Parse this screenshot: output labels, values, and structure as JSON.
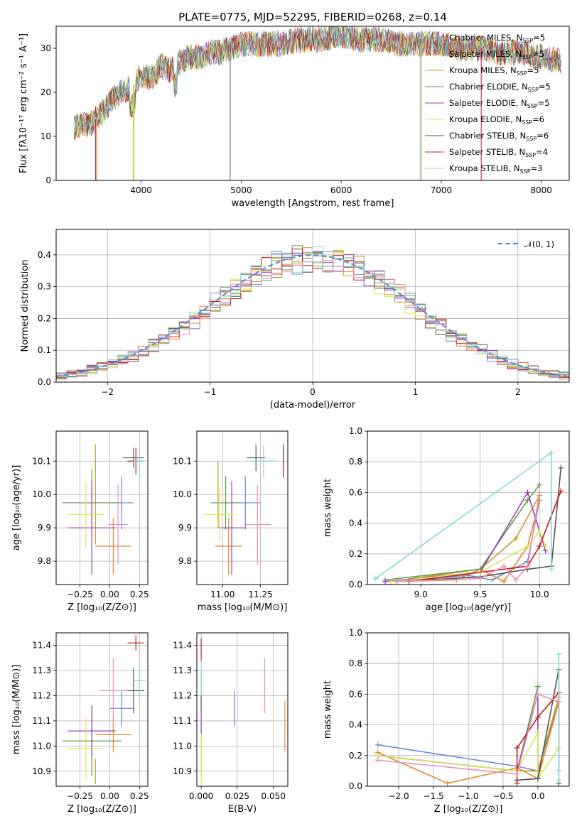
{
  "title": "PLATE=0775, MJD=52295, FIBERID=0268, z=0.14",
  "colors": {
    "cm": "#6a8bd8",
    "sm": "#e8842c",
    "km": "#c59a22",
    "ce": "#5e9a4c",
    "se": "#9b3fb8",
    "ke": "#d8e85a",
    "cs": "#555555",
    "ss": "#c01c1c",
    "ks": "#84d8dc",
    "pink": "#e890b8",
    "gauss": "#5b8fd8"
  },
  "legend": [
    {
      "label": "Chabrier MILES, N",
      "sub": "SSP",
      "tail": "=5",
      "color": "#6a8bd8"
    },
    {
      "label": "Salpeter MILES, N",
      "sub": "SSP",
      "tail": "=5",
      "color": "#e8842c"
    },
    {
      "label": "Kroupa MILES, N",
      "sub": "SSP",
      "tail": "=5",
      "color": "#c59a22"
    },
    {
      "label": "Chabrier ELODIE, N",
      "sub": "SSP",
      "tail": "=5",
      "color": "#5e9a4c"
    },
    {
      "label": "Salpeter ELODIE, N",
      "sub": "SSP",
      "tail": "=5",
      "color": "#9b3fb8"
    },
    {
      "label": "Kroupa ELODIE, N",
      "sub": "SSP",
      "tail": "=6",
      "color": "#d8e85a"
    },
    {
      "label": "Chabrier STELIB, N",
      "sub": "SSP",
      "tail": "=6",
      "color": "#555555"
    },
    {
      "label": "Salpeter STELIB, N",
      "sub": "SSP",
      "tail": "=4",
      "color": "#c01c1c"
    },
    {
      "label": "Kroupa STELIB, N",
      "sub": "SSP",
      "tail": "=3",
      "color": "#84d8dc"
    }
  ],
  "chart_data": [
    {
      "id": "spectrum",
      "type": "line",
      "xlabel": "wavelength [Angstrom, rest frame]",
      "ylabel": "Flux [fλ10⁻¹⁷ erg cm⁻² s⁻¹ A⁻¹]",
      "xlim": [
        3150,
        8280
      ],
      "ylim": [
        0,
        35
      ],
      "xticks": [
        4000,
        5000,
        6000,
        7000,
        8000
      ],
      "yticks": [
        0,
        10,
        20,
        30
      ],
      "series": [
        {
          "name": "data",
          "x": [
            3300,
            3400,
            3500,
            3600,
            3700,
            3800,
            3900,
            4000,
            4100,
            4200,
            4300,
            4400,
            4500,
            4600,
            4700,
            4800,
            4900,
            5000,
            5200,
            5400,
            5600,
            5800,
            6000,
            6200,
            6400,
            6600,
            6800,
            7000,
            7200,
            7400,
            7600,
            7800,
            8000,
            8200
          ],
          "y": [
            12,
            12.5,
            13,
            15,
            18,
            20,
            21,
            24,
            23,
            26,
            25,
            27,
            28,
            28,
            29,
            29,
            30,
            31,
            31,
            31,
            32,
            32,
            33,
            32,
            32,
            31,
            31,
            31,
            30,
            30,
            29,
            29,
            28,
            27
          ]
        }
      ]
    },
    {
      "id": "residuals",
      "type": "histogram",
      "xlabel": "(data-model)/error",
      "ylabel": "Normed distribution",
      "xlim": [
        -2.5,
        2.5
      ],
      "ylim": [
        0,
        0.48
      ],
      "xticks": [
        -2,
        -1,
        0,
        1,
        2
      ],
      "yticks": [
        0.0,
        0.1,
        0.2,
        0.3,
        0.4
      ],
      "legend_label": "𝒩(0, 1)"
    },
    {
      "id": "age-vs-Z",
      "type": "errorbar",
      "xlabel": "Z [log₁₀(Z/Z⊙)]",
      "ylabel": "age  [log₁₀(age/yr)]",
      "xlim": [
        -0.45,
        0.32
      ],
      "ylim": [
        9.73,
        10.19
      ],
      "xticks": [
        -0.25,
        0.0,
        0.25
      ],
      "yticks": [
        9.8,
        9.9,
        10.0,
        10.1
      ],
      "points": [
        {
          "x": 0.1,
          "y": 9.975,
          "xerr": 0.1,
          "yerr": 0.08,
          "c": "cm"
        },
        {
          "x": 0.03,
          "y": 9.845,
          "xerr": 0.15,
          "yerr": 0.085,
          "c": "sm"
        },
        {
          "x": -0.12,
          "y": 10.0,
          "xerr": 0.0,
          "yerr": 0.15,
          "c": "km"
        },
        {
          "x": -0.15,
          "y": 9.975,
          "xerr": 0.25,
          "yerr": 0.1,
          "c": "ce"
        },
        {
          "x": -0.15,
          "y": 9.9,
          "xerr": 0.2,
          "yerr": 0.14,
          "c": "se"
        },
        {
          "x": -0.2,
          "y": 9.94,
          "xerr": 0.15,
          "yerr": 0.1,
          "c": "ke"
        },
        {
          "x": 0.2,
          "y": 10.11,
          "xerr": 0.09,
          "yerr": 0.03,
          "c": "cs"
        },
        {
          "x": 0.22,
          "y": 10.1,
          "xerr": 0.07,
          "yerr": 0.04,
          "c": "ss"
        },
        {
          "x": 0.25,
          "y": 10.1,
          "xerr": 0.05,
          "yerr": 0.05,
          "c": "ks"
        },
        {
          "x": 0.07,
          "y": 9.91,
          "xerr": 0.08,
          "yerr": 0.12,
          "c": "pink"
        }
      ]
    },
    {
      "id": "age-vs-mass",
      "type": "errorbar",
      "xlabel": "mass [log₁₀(M/M⊙)]",
      "ylabel": "",
      "xlim": [
        10.83,
        11.43
      ],
      "ylim": [
        9.73,
        10.19
      ],
      "xticks": [
        11.0,
        11.25
      ],
      "yticks": [
        9.8,
        9.9,
        10.0,
        10.1
      ],
      "points": [
        {
          "x": 11.15,
          "y": 9.975,
          "xerr": 0.1,
          "yerr": 0.08,
          "c": "cm"
        },
        {
          "x": 11.04,
          "y": 9.845,
          "xerr": 0.09,
          "yerr": 0.085,
          "c": "sm"
        },
        {
          "x": 10.97,
          "y": 10.0,
          "xerr": 0.0,
          "yerr": 0.1,
          "c": "km"
        },
        {
          "x": 11.02,
          "y": 9.975,
          "xerr": 0.1,
          "yerr": 0.08,
          "c": "ce"
        },
        {
          "x": 11.06,
          "y": 9.9,
          "xerr": 0.09,
          "yerr": 0.14,
          "c": "se"
        },
        {
          "x": 10.98,
          "y": 9.94,
          "xerr": 0.1,
          "yerr": 0.08,
          "c": "ke"
        },
        {
          "x": 11.22,
          "y": 10.11,
          "xerr": 0.06,
          "yerr": 0.04,
          "c": "cs"
        },
        {
          "x": 11.4,
          "y": 10.1,
          "xerr": 0.0,
          "yerr": 0.05,
          "c": "ss"
        },
        {
          "x": 11.27,
          "y": 10.1,
          "xerr": 0.08,
          "yerr": 0.05,
          "c": "ks"
        },
        {
          "x": 11.23,
          "y": 9.91,
          "xerr": 0.09,
          "yerr": 0.12,
          "c": "pink"
        }
      ]
    },
    {
      "id": "weight-vs-age",
      "type": "line",
      "xlabel": "age  [log₁₀(age/yr)]",
      "ylabel": "mass weight",
      "xlim": [
        8.55,
        10.25
      ],
      "ylim": [
        0,
        1
      ],
      "xticks": [
        9.0,
        9.5,
        10.0
      ],
      "yticks": [
        0.0,
        0.2,
        0.4,
        0.6,
        0.8,
        1.0
      ],
      "series": [
        {
          "c": "cm",
          "x": [
            8.8,
            9.4,
            9.6,
            9.9,
            10.0
          ],
          "y": [
            0.02,
            0.06,
            0.03,
            0.15,
            0.55
          ]
        },
        {
          "c": "sm",
          "x": [
            8.8,
            9.3,
            9.5,
            9.7,
            9.9,
            10.0
          ],
          "y": [
            0.02,
            0.03,
            0.1,
            0.02,
            0.25,
            0.55
          ]
        },
        {
          "c": "km",
          "x": [
            8.75,
            9.5,
            9.8,
            10.0
          ],
          "y": [
            0.02,
            0.1,
            0.3,
            0.58
          ]
        },
        {
          "c": "ce",
          "x": [
            8.7,
            9.5,
            9.9,
            10.0
          ],
          "y": [
            0.03,
            0.1,
            0.55,
            0.65
          ]
        },
        {
          "c": "se",
          "x": [
            8.7,
            9.5,
            9.9,
            10.05
          ],
          "y": [
            0.02,
            0.08,
            0.6,
            0.22
          ]
        },
        {
          "c": "ke",
          "x": [
            8.75,
            9.0,
            9.5,
            9.9,
            10.0,
            10.05
          ],
          "y": [
            0.02,
            0.04,
            0.08,
            0.25,
            0.35,
            0.25
          ]
        },
        {
          "c": "cs",
          "x": [
            8.8,
            9.5,
            9.9,
            10.1,
            10.18
          ],
          "y": [
            0.02,
            0.05,
            0.1,
            0.12,
            0.76
          ]
        },
        {
          "c": "ss",
          "x": [
            8.9,
            9.9,
            10.0,
            10.18
          ],
          "y": [
            0.02,
            0.12,
            0.25,
            0.61
          ]
        },
        {
          "c": "ks",
          "x": [
            8.62,
            10.1,
            10.1
          ],
          "y": [
            0.04,
            0.86,
            0.1
          ]
        },
        {
          "c": "pink",
          "x": [
            8.8,
            9.5,
            9.7,
            9.8,
            9.9,
            10.0
          ],
          "y": [
            0.02,
            0.04,
            0.12,
            0.03,
            0.12,
            0.6
          ]
        }
      ]
    },
    {
      "id": "mass-vs-Z",
      "type": "errorbar",
      "xlabel": "Z [log₁₀(Z/Z⊙)]",
      "ylabel": "mass [log₁₀(M/M⊙)]",
      "xlim": [
        -0.45,
        0.32
      ],
      "ylim": [
        10.84,
        11.45
      ],
      "xticks": [
        -0.25,
        0.0,
        0.25
      ],
      "yticks": [
        10.9,
        11.0,
        11.1,
        11.2,
        11.3,
        11.4
      ],
      "points": [
        {
          "x": 0.1,
          "y": 11.15,
          "xerr": 0.1,
          "yerr": 0.07,
          "c": "cm"
        },
        {
          "x": 0.03,
          "y": 11.045,
          "xerr": 0.15,
          "yerr": 0.07,
          "c": "sm"
        },
        {
          "x": -0.12,
          "y": 10.9,
          "xerr": 0.0,
          "yerr": 0.05,
          "c": "km"
        },
        {
          "x": -0.15,
          "y": 11.02,
          "xerr": 0.25,
          "yerr": 0.14,
          "c": "ce"
        },
        {
          "x": -0.15,
          "y": 11.06,
          "xerr": 0.2,
          "yerr": 0.1,
          "c": "se"
        },
        {
          "x": -0.2,
          "y": 10.99,
          "xerr": 0.15,
          "yerr": 0.12,
          "c": "ke"
        },
        {
          "x": 0.2,
          "y": 11.22,
          "xerr": 0.09,
          "yerr": 0.09,
          "c": "cs"
        },
        {
          "x": 0.22,
          "y": 11.41,
          "xerr": 0.07,
          "yerr": 0.03,
          "c": "ss"
        },
        {
          "x": 0.25,
          "y": 11.26,
          "xerr": 0.05,
          "yerr": 0.06,
          "c": "ks"
        },
        {
          "x": 0.03,
          "y": 11.22,
          "xerr": 0.12,
          "yerr": 0.13,
          "c": "pink"
        }
      ]
    },
    {
      "id": "mass-vs-ebv",
      "type": "errorbar",
      "xlabel": "E(B-V)",
      "ylabel": "",
      "xlim": [
        -0.003,
        0.06
      ],
      "ylim": [
        10.84,
        11.45
      ],
      "xticks": [
        0.0,
        0.025,
        0.05
      ],
      "yticks": [
        10.9,
        11.0,
        11.1,
        11.2,
        11.3,
        11.4
      ],
      "points": [
        {
          "x": 0.023,
          "y": 11.15,
          "xerr": 0,
          "yerr": 0.07,
          "c": "cm"
        },
        {
          "x": 0.058,
          "y": 11.08,
          "xerr": 0,
          "yerr": 0.1,
          "c": "sm"
        },
        {
          "x": 0.0,
          "y": 10.93,
          "xerr": 0,
          "yerr": 0.06,
          "c": "km"
        },
        {
          "x": 0.0,
          "y": 11.0,
          "xerr": 0,
          "yerr": 0.1,
          "c": "ce"
        },
        {
          "x": 0.0,
          "y": 11.1,
          "xerr": 0,
          "yerr": 0.05,
          "c": "se"
        },
        {
          "x": 0.0,
          "y": 10.95,
          "xerr": 0,
          "yerr": 0.1,
          "c": "ke"
        },
        {
          "x": 0.0,
          "y": 11.22,
          "xerr": 0,
          "yerr": 0.08,
          "c": "cs"
        },
        {
          "x": 0.0,
          "y": 11.38,
          "xerr": 0,
          "yerr": 0.05,
          "c": "ss"
        },
        {
          "x": 0.0,
          "y": 11.27,
          "xerr": 0,
          "yerr": 0.07,
          "c": "ks"
        },
        {
          "x": 0.044,
          "y": 11.24,
          "xerr": 0,
          "yerr": 0.11,
          "c": "pink"
        }
      ]
    },
    {
      "id": "weight-vs-Z",
      "type": "line",
      "xlabel": "Z [log₁₀(Z/Z⊙)]",
      "ylabel": "mass weight",
      "xlim": [
        -2.45,
        0.45
      ],
      "ylim": [
        0,
        1
      ],
      "xticks": [
        -2.0,
        -1.5,
        -1.0,
        -0.5,
        0.0
      ],
      "yticks": [
        0.0,
        0.2,
        0.4,
        0.6,
        0.8,
        1.0
      ],
      "series": [
        {
          "c": "cm",
          "x": [
            -2.3,
            -0.3,
            0.0,
            0.3
          ],
          "y": [
            0.27,
            0.13,
            0.1,
            0.55
          ]
        },
        {
          "c": "sm",
          "x": [
            -2.3,
            -1.3,
            -0.3,
            0.0,
            0.3
          ],
          "y": [
            0.22,
            0.02,
            0.12,
            0.05,
            0.55
          ]
        },
        {
          "c": "km",
          "x": [
            -2.3,
            -0.3,
            0.0,
            0.3
          ],
          "y": [
            0.2,
            0.1,
            0.1,
            0.58
          ]
        },
        {
          "c": "ce",
          "x": [
            -2.3,
            -0.3,
            0.0
          ],
          "y": [
            0.2,
            0.1,
            0.65
          ]
        },
        {
          "c": "se",
          "x": [
            -2.3,
            -0.3,
            0.0,
            0.0
          ],
          "y": [
            0.2,
            0.1,
            0.6,
            0.05
          ]
        },
        {
          "c": "ke",
          "x": [
            -2.3,
            -0.3,
            0.0,
            0.0,
            0.3
          ],
          "y": [
            0.2,
            0.1,
            0.35,
            0.05,
            0.25
          ]
        },
        {
          "c": "cs",
          "x": [
            -0.3,
            0.0,
            0.3,
            0.3
          ],
          "y": [
            0.04,
            0.05,
            0.76,
            0.02
          ]
        },
        {
          "c": "ss",
          "x": [
            -0.3,
            -0.3,
            0.0,
            0.3,
            0.3
          ],
          "y": [
            0.02,
            0.25,
            0.45,
            0.61,
            0.1
          ]
        },
        {
          "c": "ks",
          "x": [
            0.3,
            0.3,
            0.3
          ],
          "y": [
            0.86,
            0.04,
            0.1
          ]
        },
        {
          "c": "pink",
          "x": [
            -2.3,
            -0.3,
            0.0,
            0.3
          ],
          "y": [
            0.17,
            0.08,
            0.6,
            0.55
          ]
        }
      ]
    }
  ]
}
